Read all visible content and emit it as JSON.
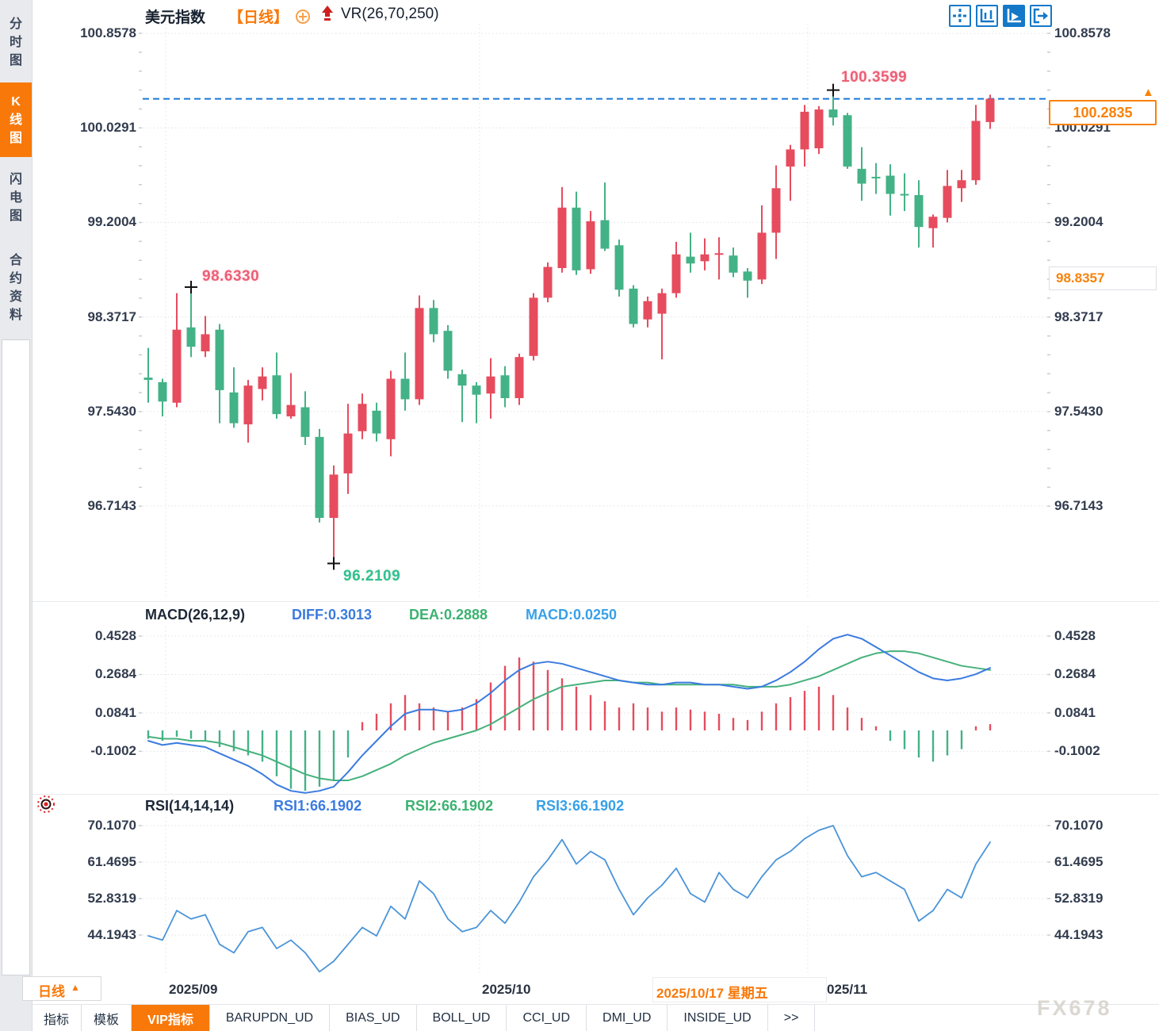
{
  "colors": {
    "up_red": "#e64c5e",
    "down_green": "#44b287",
    "accent_orange": "#f8790a",
    "diff_blue": "#3b7be0",
    "dea_green": "#46b17c",
    "rsi_blue": "#4a94d8",
    "dashed_price_blue": "#1b79d6",
    "active_toolbar_blue": "#1478c8"
  },
  "sidebar": {
    "tabs": [
      {
        "label": "分时图",
        "active": false
      },
      {
        "label": "K线图",
        "active": true
      },
      {
        "label": "闪电图",
        "active": false
      },
      {
        "label": "合约资料",
        "active": false
      }
    ]
  },
  "header": {
    "symbol": "美元指数",
    "period_tag": "【日线】",
    "indicator": "VR(26,70,250)"
  },
  "toolbar": {
    "icons": [
      "move-icon",
      "axis-scale-icon",
      "axis-play-icon",
      "exit-right-icon"
    ]
  },
  "main_chart": {
    "y_axis_labels": [
      "100.8578",
      "100.0291",
      "99.2004",
      "98.3717",
      "97.5430",
      "96.7143"
    ],
    "high_annotation": "100.3599",
    "mid_annotation": "98.6330",
    "low_annotation": "96.2109",
    "current_price_box": "100.2835",
    "prev_close_box": "98.8357",
    "up_triangle": "▲"
  },
  "macd_panel": {
    "title": "MACD(26,12,9)",
    "diff_label": "DIFF:0.3013",
    "dea_label": "DEA:0.2888",
    "macd_label": "MACD:0.0250",
    "y_axis_labels": [
      "0.4528",
      "0.2684",
      "0.0841",
      "-0.1002"
    ]
  },
  "rsi_panel": {
    "title": "RSI(14,14,14)",
    "rsi1_label": "RSI1:66.1902",
    "rsi2_label": "RSI2:66.1902",
    "rsi3_label": "RSI3:66.1902",
    "y_axis_labels": [
      "70.1070",
      "61.4695",
      "52.8319",
      "44.1943"
    ]
  },
  "bottom_axis": {
    "month_labels": [
      "2025/09",
      "2025/10"
    ],
    "highlight_date": "2025/10/17 星期五",
    "partial_label": "025/11",
    "period_label": "日线",
    "period_triangle": "▲"
  },
  "bottom_tabs": [
    {
      "label": "指标",
      "active": false
    },
    {
      "label": "模板",
      "active": false
    },
    {
      "label": "VIP指标",
      "active": true
    },
    {
      "label": "BARUPDN_UD",
      "active": false
    },
    {
      "label": "BIAS_UD",
      "active": false
    },
    {
      "label": "BOLL_UD",
      "active": false
    },
    {
      "label": "CCI_UD",
      "active": false
    },
    {
      "label": "DMI_UD",
      "active": false
    },
    {
      "label": "INSIDE_UD",
      "active": false
    },
    {
      "label": ">>",
      "active": false
    }
  ],
  "watermark": "FX678",
  "chart_data": {
    "type": "candlestick",
    "symbol": "美元指数",
    "period": "日线",
    "y_ticks": [
      100.8578,
      100.0291,
      99.2004,
      98.3717,
      97.543,
      96.7143
    ],
    "current_price": 100.2835,
    "prev_close": 98.8357,
    "month_start_indices": [
      1,
      23,
      46
    ],
    "candles": [
      [
        97.84,
        98.1,
        97.62,
        97.82
      ],
      [
        97.8,
        97.83,
        97.5,
        97.63
      ],
      [
        97.62,
        98.58,
        97.58,
        98.26
      ],
      [
        98.28,
        98.633,
        98.02,
        98.11
      ],
      [
        98.07,
        98.38,
        98.02,
        98.22
      ],
      [
        98.26,
        98.31,
        97.44,
        97.73
      ],
      [
        97.71,
        97.93,
        97.4,
        97.44
      ],
      [
        97.43,
        97.82,
        97.27,
        97.77
      ],
      [
        97.74,
        97.93,
        97.64,
        97.85
      ],
      [
        97.86,
        98.06,
        97.48,
        97.52
      ],
      [
        97.5,
        97.88,
        97.48,
        97.6
      ],
      [
        97.58,
        97.72,
        97.25,
        97.32
      ],
      [
        97.32,
        97.39,
        96.57,
        96.61
      ],
      [
        96.61,
        97.07,
        96.211,
        96.99
      ],
      [
        97.0,
        97.61,
        96.82,
        97.35
      ],
      [
        97.37,
        97.7,
        97.3,
        97.61
      ],
      [
        97.55,
        97.62,
        97.28,
        97.35
      ],
      [
        97.3,
        97.9,
        97.15,
        97.83
      ],
      [
        97.83,
        98.06,
        97.55,
        97.65
      ],
      [
        97.65,
        98.56,
        97.6,
        98.45
      ],
      [
        98.45,
        98.52,
        98.15,
        98.22
      ],
      [
        98.25,
        98.3,
        97.83,
        97.9
      ],
      [
        97.87,
        97.91,
        97.45,
        97.77
      ],
      [
        97.77,
        97.8,
        97.44,
        97.69
      ],
      [
        97.7,
        98.01,
        97.48,
        97.85
      ],
      [
        97.86,
        97.94,
        97.58,
        97.66
      ],
      [
        97.66,
        98.05,
        97.6,
        98.02
      ],
      [
        98.03,
        98.58,
        97.99,
        98.54
      ],
      [
        98.54,
        98.85,
        98.5,
        98.81
      ],
      [
        98.8,
        99.51,
        98.76,
        99.33
      ],
      [
        99.33,
        99.47,
        98.74,
        98.78
      ],
      [
        98.79,
        99.3,
        98.75,
        99.21
      ],
      [
        99.22,
        99.55,
        98.95,
        98.97
      ],
      [
        99.0,
        99.05,
        98.55,
        98.61
      ],
      [
        98.62,
        98.65,
        98.28,
        98.31
      ],
      [
        98.35,
        98.55,
        98.28,
        98.51
      ],
      [
        98.4,
        98.62,
        98.0,
        98.58
      ],
      [
        98.58,
        99.03,
        98.54,
        98.92
      ],
      [
        98.9,
        99.11,
        98.76,
        98.84
      ],
      [
        98.86,
        99.06,
        98.78,
        98.92
      ],
      [
        98.92,
        99.07,
        98.7,
        98.93
      ],
      [
        98.91,
        98.98,
        98.72,
        98.76
      ],
      [
        98.77,
        98.8,
        98.54,
        98.69
      ],
      [
        98.7,
        99.35,
        98.66,
        99.11
      ],
      [
        99.11,
        99.7,
        98.88,
        99.5
      ],
      [
        99.69,
        99.88,
        99.39,
        99.84
      ],
      [
        99.84,
        100.23,
        99.69,
        100.17
      ],
      [
        99.85,
        100.22,
        99.8,
        100.19
      ],
      [
        100.19,
        100.3599,
        100.05,
        100.12
      ],
      [
        100.14,
        100.16,
        99.67,
        99.69
      ],
      [
        99.67,
        99.86,
        99.39,
        99.54
      ],
      [
        99.6,
        99.72,
        99.45,
        99.59
      ],
      [
        99.61,
        99.71,
        99.26,
        99.45
      ],
      [
        99.45,
        99.63,
        99.3,
        99.44
      ],
      [
        99.44,
        99.57,
        98.98,
        99.16
      ],
      [
        99.15,
        99.27,
        98.98,
        99.25
      ],
      [
        99.24,
        99.66,
        99.2,
        99.52
      ],
      [
        99.5,
        99.66,
        99.38,
        99.57
      ],
      [
        99.57,
        100.23,
        99.53,
        100.09
      ],
      [
        100.08,
        100.32,
        100.02,
        100.2835
      ]
    ],
    "annotations": {
      "high": {
        "index": 48,
        "price": 100.3599,
        "label": "100.3599"
      },
      "mid": {
        "index": 3,
        "price": 98.633,
        "label": "98.6330"
      },
      "low": {
        "index": 13,
        "price": 96.2109,
        "label": "96.2109"
      }
    },
    "macd": {
      "y_ticks": [
        0.4528,
        0.2684,
        0.0841,
        -0.1002
      ],
      "diff": [
        -0.05,
        -0.07,
        -0.06,
        -0.07,
        -0.08,
        -0.11,
        -0.14,
        -0.17,
        -0.21,
        -0.26,
        -0.29,
        -0.3,
        -0.29,
        -0.27,
        -0.2,
        -0.12,
        -0.05,
        0.02,
        0.08,
        0.1,
        0.1,
        0.09,
        0.1,
        0.13,
        0.18,
        0.24,
        0.29,
        0.32,
        0.33,
        0.32,
        0.3,
        0.28,
        0.26,
        0.24,
        0.23,
        0.22,
        0.22,
        0.23,
        0.23,
        0.22,
        0.22,
        0.21,
        0.2,
        0.21,
        0.24,
        0.28,
        0.33,
        0.39,
        0.44,
        0.46,
        0.44,
        0.4,
        0.36,
        0.32,
        0.28,
        0.25,
        0.24,
        0.25,
        0.27,
        0.3
      ],
      "dea": [
        -0.03,
        -0.04,
        -0.04,
        -0.05,
        -0.05,
        -0.06,
        -0.08,
        -0.1,
        -0.12,
        -0.15,
        -0.18,
        -0.21,
        -0.23,
        -0.24,
        -0.24,
        -0.22,
        -0.19,
        -0.16,
        -0.12,
        -0.09,
        -0.06,
        -0.04,
        -0.02,
        0.0,
        0.03,
        0.07,
        0.11,
        0.15,
        0.18,
        0.21,
        0.22,
        0.23,
        0.24,
        0.24,
        0.23,
        0.23,
        0.22,
        0.22,
        0.22,
        0.22,
        0.22,
        0.22,
        0.21,
        0.21,
        0.21,
        0.22,
        0.24,
        0.26,
        0.29,
        0.32,
        0.35,
        0.37,
        0.38,
        0.38,
        0.37,
        0.35,
        0.33,
        0.31,
        0.3,
        0.29
      ],
      "hist": [
        -0.04,
        -0.05,
        -0.03,
        -0.04,
        -0.05,
        -0.08,
        -0.1,
        -0.12,
        -0.15,
        -0.22,
        -0.28,
        -0.29,
        -0.27,
        -0.24,
        -0.13,
        0.04,
        0.08,
        0.13,
        0.17,
        0.13,
        0.11,
        0.09,
        0.11,
        0.15,
        0.23,
        0.31,
        0.35,
        0.33,
        0.29,
        0.25,
        0.21,
        0.17,
        0.14,
        0.11,
        0.13,
        0.11,
        0.09,
        0.11,
        0.1,
        0.09,
        0.08,
        0.06,
        0.05,
        0.09,
        0.13,
        0.16,
        0.19,
        0.21,
        0.17,
        0.11,
        0.06,
        0.02,
        -0.05,
        -0.09,
        -0.13,
        -0.15,
        -0.12,
        -0.09,
        0.02,
        0.03
      ]
    },
    "rsi": {
      "y_ticks": [
        70.107,
        61.4695,
        52.8319,
        44.1943
      ],
      "values": [
        44,
        43,
        50,
        48,
        49,
        42,
        40,
        45,
        46,
        41,
        43,
        40,
        35.5,
        38,
        42,
        46,
        44,
        51,
        48,
        57,
        54,
        48,
        45,
        46,
        50,
        47,
        52,
        58,
        62,
        66.8,
        61,
        64,
        62,
        55,
        49,
        53,
        56,
        60,
        54,
        52,
        59,
        55,
        53,
        58,
        62,
        64,
        67,
        69,
        70.1,
        63,
        58,
        59,
        57,
        55,
        47.5,
        50,
        55,
        53,
        61,
        66.19
      ]
    }
  }
}
